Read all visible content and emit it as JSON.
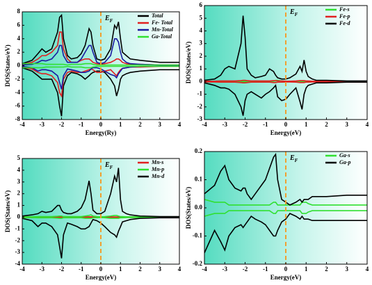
{
  "chart_data": [
    {
      "type": "line",
      "x_label": "Energy(Ry)",
      "y_label": "DOS(States/eV)",
      "fermi_label": {
        "main": "E",
        "sub": "F"
      },
      "fermi_level": 0,
      "fermi_color": "#f0a030",
      "legend": "upper right",
      "xlim": [
        -4,
        4
      ],
      "xticks": [
        -4,
        -3,
        -2,
        -1,
        0,
        1,
        2,
        3,
        4
      ],
      "ylim": [
        -8,
        8
      ],
      "yticks": [
        -8,
        -6,
        -4,
        -2,
        0,
        2,
        4,
        6,
        8
      ],
      "x": [
        -4,
        -3.5,
        -3.2,
        -3,
        -2.8,
        -2.5,
        -2.2,
        -2.1,
        -2,
        -1.9,
        -1.7,
        -1.5,
        -1.2,
        -1,
        -0.8,
        -0.6,
        -0.5,
        -0.4,
        -0.2,
        0,
        0.2,
        0.5,
        0.7,
        0.8,
        0.9,
        1,
        1.1,
        1.3,
        1.5,
        2,
        3,
        4
      ],
      "series": [
        {
          "name": "Total",
          "color": "#000000",
          "values": [
            0.3,
            0.8,
            1.8,
            2.5,
            2,
            2.5,
            5,
            7.2,
            7.5,
            4,
            1.5,
            1,
            1.2,
            1.8,
            3,
            5.5,
            5,
            3,
            1,
            0.8,
            1,
            2.5,
            6,
            5.5,
            6.5,
            4,
            2,
            1.5,
            1,
            0.8,
            0.5,
            0.5
          ],
          "down": [
            -0.3,
            -0.8,
            -1.5,
            -2,
            -2,
            -2,
            -4,
            -6,
            -7.5,
            -3,
            -1.5,
            -1,
            -1.2,
            -1.5,
            -2,
            -1.5,
            -1.2,
            -1,
            -0.8,
            -0.8,
            -1,
            -2,
            -3,
            -4.5,
            -3.5,
            -2,
            -1.5,
            -1.2,
            -1,
            -0.8,
            -0.6,
            -0.6
          ]
        },
        {
          "name": "Fe- Total",
          "color": "#e02020",
          "values": [
            0.2,
            0.5,
            1,
            1.5,
            1.5,
            2,
            3,
            5,
            5,
            2.5,
            1,
            0.5,
            0.5,
            0.8,
            1,
            1,
            0.8,
            0.5,
            0.3,
            0.2,
            0.3,
            0.5,
            0.8,
            1,
            1,
            0.8,
            0.5,
            0.3,
            0.2,
            0.2,
            0.1,
            0.1
          ],
          "down": [
            -0.2,
            -0.5,
            -1,
            -1.2,
            -1.2,
            -1.5,
            -2.5,
            -4,
            -4.5,
            -2,
            -1,
            -0.8,
            -1,
            -1,
            -0.8,
            -0.6,
            -0.5,
            -0.6,
            -1,
            -1,
            -0.8,
            -0.6,
            -1.2,
            -1.5,
            -1,
            -0.6,
            -0.4,
            -0.3,
            -0.2,
            -0.2,
            -0.1,
            -0.1
          ]
        },
        {
          "name": "Mn-Total",
          "color": "#1a1aa0",
          "values": [
            0.1,
            0.2,
            0.5,
            0.8,
            0.7,
            1,
            2,
            3,
            3,
            1.5,
            0.5,
            0.5,
            0.5,
            1,
            2,
            3,
            3,
            2,
            0.5,
            0.3,
            0.5,
            1.5,
            4,
            4,
            3.5,
            2,
            1,
            0.5,
            0.3,
            0.2,
            0.1,
            0.1
          ],
          "down": [
            -0.1,
            -0.3,
            -0.8,
            -0.6,
            -0.6,
            -0.8,
            -1.5,
            -2.5,
            -3.5,
            -1.5,
            -0.5,
            -0.6,
            -0.8,
            -1,
            -1,
            -0.8,
            -0.5,
            -0.3,
            -0.3,
            -0.5,
            -0.8,
            -1.3,
            -1.5,
            -1.8,
            -1.2,
            -0.8,
            -0.4,
            -0.3,
            -0.2,
            -0.1,
            -0.05,
            -0.05
          ]
        },
        {
          "name": "Ga-Total",
          "color": "#30e030",
          "values": [
            0.3,
            0.3,
            0.3,
            0.3,
            0.2,
            0.2,
            0.2,
            0.2,
            0.2,
            0.2,
            0.1,
            0.2,
            0.2,
            0.2,
            0.3,
            0.3,
            0.3,
            0.2,
            0.1,
            0.1,
            0.1,
            0.1,
            0.1,
            0.1,
            0.1,
            0.1,
            0.1,
            0.1,
            0.1,
            0.1,
            0.1,
            0.1
          ],
          "down": [
            -0.3,
            -0.3,
            -0.3,
            -0.3,
            -0.2,
            -0.2,
            -0.2,
            -0.2,
            -0.2,
            -0.2,
            -0.1,
            -0.2,
            -0.2,
            -0.2,
            -0.3,
            -0.3,
            -0.3,
            -0.2,
            -0.1,
            -0.1,
            -0.1,
            -0.1,
            -0.1,
            -0.1,
            -0.1,
            -0.1,
            -0.1,
            -0.1,
            -0.1,
            -0.1,
            -0.1,
            -0.1
          ]
        }
      ]
    },
    {
      "type": "line",
      "x_label": "Energy(eV)",
      "y_label": "DOS(States/eV)",
      "fermi_label": {
        "main": "E",
        "sub": "F"
      },
      "fermi_level": 0,
      "fermi_color": "#f0a030",
      "legend": "upper right",
      "xlim": [
        -4,
        4
      ],
      "xticks": [
        -4,
        -3,
        -2,
        -1,
        0,
        1,
        2,
        3,
        4
      ],
      "ylim": [
        -3,
        6
      ],
      "yticks": [
        -3,
        -2,
        -1,
        0,
        1,
        2,
        3,
        4,
        5,
        6
      ],
      "x": [
        -4,
        -3.5,
        -3.2,
        -3,
        -2.8,
        -2.5,
        -2.2,
        -2.1,
        -2,
        -1.9,
        -1.7,
        -1.5,
        -1.2,
        -1,
        -0.8,
        -0.6,
        -0.5,
        -0.4,
        -0.2,
        0,
        0.2,
        0.5,
        0.7,
        0.8,
        0.9,
        1,
        1.1,
        1.3,
        1.5,
        2,
        3,
        4
      ],
      "series": [
        {
          "name": "Fe-s",
          "color": "#30e030",
          "values": [
            0.02,
            0.02,
            0.03,
            0.03,
            0.03,
            0.03,
            0.03,
            0.03,
            0.03,
            0.03,
            0.02,
            0.02,
            0.02,
            0.02,
            0.03,
            0.05,
            0.1,
            0.1,
            0.05,
            0.02,
            0.02,
            0.02,
            0.02,
            0.02,
            0.02,
            0.02,
            0.02,
            0.02,
            0.02,
            0.02,
            0.02,
            0.02
          ],
          "down": [
            -0.02,
            -0.02,
            -0.03,
            -0.03,
            -0.03,
            -0.03,
            -0.03,
            -0.03,
            -0.03,
            -0.03,
            -0.02,
            -0.02,
            -0.02,
            -0.02,
            -0.03,
            -0.05,
            -0.05,
            -0.05,
            -0.05,
            -0.02,
            -0.02,
            -0.02,
            -0.02,
            -0.02,
            -0.02,
            -0.02,
            -0.02,
            -0.02,
            -0.02,
            -0.02,
            -0.02,
            -0.02
          ]
        },
        {
          "name": "Fe-p",
          "color": "#e02020",
          "values": [
            0.03,
            0.03,
            0.05,
            0.05,
            0.05,
            0.05,
            0.08,
            0.1,
            0.1,
            0.08,
            0.05,
            0.05,
            0.05,
            0.05,
            0.05,
            0.08,
            0.08,
            0.05,
            0.05,
            0.03,
            0.03,
            0.05,
            0.08,
            0.08,
            0.08,
            0.05,
            0.05,
            0.03,
            0.03,
            0.03,
            0.03,
            0.03
          ],
          "down": [
            -0.03,
            -0.03,
            -0.05,
            -0.05,
            -0.05,
            -0.05,
            -0.08,
            -0.1,
            -0.1,
            -0.08,
            -0.05,
            -0.05,
            -0.05,
            -0.05,
            -0.05,
            -0.08,
            -0.08,
            -0.05,
            -0.05,
            -0.03,
            -0.03,
            -0.05,
            -0.08,
            -0.08,
            -0.08,
            -0.05,
            -0.05,
            -0.03,
            -0.03,
            -0.03,
            -0.03,
            -0.03
          ]
        },
        {
          "name": "Fe-d",
          "color": "#000000",
          "values": [
            0.1,
            0.2,
            0.5,
            1,
            1.2,
            1,
            3,
            5.2,
            3.5,
            1,
            0.5,
            0.3,
            0.4,
            0.5,
            1,
            0.8,
            0.5,
            0.3,
            0.2,
            0.2,
            0.3,
            0.6,
            1.2,
            0.8,
            1.7,
            0.8,
            0.4,
            0.2,
            0.1,
            0.1,
            0.05,
            0.05
          ],
          "down": [
            -0.1,
            -0.3,
            -0.5,
            -0.5,
            -0.6,
            -1,
            -2,
            -2.7,
            -1.5,
            -1,
            -0.8,
            -1,
            -1.3,
            -1,
            -0.8,
            -0.5,
            -0.3,
            -1.2,
            -1.5,
            -1.4,
            -1,
            -0.5,
            -1.6,
            -2.2,
            -1,
            -0.5,
            -0.3,
            -0.2,
            -0.1,
            -0.1,
            -0.05,
            -0.05
          ]
        }
      ]
    },
    {
      "type": "line",
      "x_label": "Energy(eV)",
      "y_label": "DOS(States/eV)",
      "fermi_label": {
        "main": "E",
        "sub": "F"
      },
      "fermi_level": 0,
      "fermi_color": "#f0a030",
      "legend": "upper right",
      "xlim": [
        -4,
        4
      ],
      "xticks": [
        -4,
        -3,
        -2,
        -1,
        0,
        1,
        2,
        3,
        4
      ],
      "ylim": [
        -4,
        5
      ],
      "yticks": [
        -4,
        -3,
        -2,
        -1,
        0,
        1,
        2,
        3,
        4,
        5
      ],
      "x": [
        -4,
        -3.5,
        -3.2,
        -3,
        -2.8,
        -2.5,
        -2.2,
        -2.1,
        -2,
        -1.9,
        -1.7,
        -1.5,
        -1.2,
        -1,
        -0.8,
        -0.6,
        -0.5,
        -0.4,
        -0.2,
        0,
        0.2,
        0.5,
        0.7,
        0.8,
        0.9,
        1,
        1.1,
        1.3,
        1.5,
        2,
        3,
        4
      ],
      "series": [
        {
          "name": "Mn-s",
          "color": "#e02020",
          "values": [
            0.02,
            0.02,
            0.02,
            0.02,
            0.02,
            0.02,
            0.03,
            0.03,
            0.03,
            0.02,
            0.02,
            0.02,
            0.02,
            0.02,
            0.02,
            0.03,
            0.03,
            0.02,
            0.02,
            0.02,
            0.02,
            0.02,
            0.02,
            0.02,
            0.02,
            0.02,
            0.02,
            0.02,
            0.02,
            0.02,
            0.02,
            0.02
          ],
          "down": [
            -0.02,
            -0.02,
            -0.02,
            -0.02,
            -0.02,
            -0.02,
            -0.03,
            -0.03,
            -0.03,
            -0.02,
            -0.02,
            -0.02,
            -0.02,
            -0.02,
            -0.02,
            -0.03,
            -0.03,
            -0.02,
            -0.02,
            -0.02,
            -0.02,
            -0.02,
            -0.02,
            -0.02,
            -0.02,
            -0.02,
            -0.02,
            -0.02,
            -0.02,
            -0.02,
            -0.02,
            -0.02
          ]
        },
        {
          "name": "Mn-p",
          "color": "#30e030",
          "values": [
            0.03,
            0.03,
            0.05,
            0.05,
            0.05,
            0.05,
            0.08,
            0.1,
            0.1,
            0.05,
            0.05,
            0.05,
            0.05,
            0.05,
            0.1,
            0.15,
            0.2,
            0.1,
            0.05,
            0.03,
            0.05,
            0.1,
            0.15,
            0.15,
            0.1,
            0.05,
            0.05,
            0.03,
            0.03,
            0.03,
            0.03,
            0.03
          ],
          "down": [
            -0.03,
            -0.03,
            -0.05,
            -0.05,
            -0.05,
            -0.05,
            -0.08,
            -0.1,
            -0.1,
            -0.05,
            -0.05,
            -0.05,
            -0.05,
            -0.05,
            -0.1,
            -0.1,
            -0.1,
            -0.05,
            -0.05,
            -0.03,
            -0.05,
            -0.1,
            -0.1,
            -0.1,
            -0.1,
            -0.05,
            -0.05,
            -0.03,
            -0.03,
            -0.03,
            -0.03,
            -0.03
          ]
        },
        {
          "name": "Mn-d",
          "color": "#000000",
          "values": [
            0.1,
            0.2,
            0.3,
            0.5,
            0.4,
            0.5,
            1,
            1,
            0.6,
            0.4,
            0.3,
            0.3,
            0.5,
            0.8,
            1.5,
            3.1,
            2,
            0.6,
            0.3,
            0.3,
            0.5,
            2,
            3.5,
            3,
            4.2,
            1.5,
            0.5,
            0.3,
            0.2,
            0.1,
            0.05,
            0.05
          ],
          "down": [
            -0.1,
            -0.3,
            -0.8,
            -0.5,
            -0.5,
            -0.8,
            -1.5,
            -2.5,
            -3.5,
            -1.5,
            -0.5,
            -0.6,
            -0.8,
            -1,
            -1,
            -0.8,
            -0.5,
            -0.2,
            -0.3,
            -0.5,
            -0.8,
            -1.3,
            -1.5,
            -1.7,
            -1.2,
            -0.8,
            -0.4,
            -0.3,
            -0.2,
            -0.1,
            -0.05,
            -0.05
          ]
        }
      ]
    },
    {
      "type": "line",
      "x_label": "Energy(eV)",
      "y_label": "DOS(States/eV)",
      "fermi_label": {
        "main": "E",
        "sub": "F"
      },
      "fermi_level": 0,
      "fermi_color": "#f0a030",
      "legend": "upper right",
      "xlim": [
        -4,
        4
      ],
      "xticks": [
        -4,
        -3,
        -2,
        -1,
        0,
        1,
        2,
        3,
        4
      ],
      "ylim": [
        -0.2,
        0.2
      ],
      "yticks": [
        -0.2,
        -0.1,
        {
          "value": 0,
          "label": "0.0"
        },
        0.1,
        0.2
      ],
      "x": [
        -4,
        -3.5,
        -3.2,
        -3,
        -2.8,
        -2.5,
        -2.2,
        -2.1,
        -2,
        -1.9,
        -1.7,
        -1.5,
        -1.2,
        -1,
        -0.8,
        -0.6,
        -0.5,
        -0.4,
        -0.2,
        0,
        0.2,
        0.5,
        0.7,
        0.8,
        0.9,
        1,
        1.1,
        1.3,
        1.5,
        2,
        3,
        4
      ],
      "series": [
        {
          "name": "Ga-s",
          "color": "#30e030",
          "values": [
            0.03,
            0.02,
            0.02,
            0.02,
            0.01,
            0.01,
            0.01,
            0.01,
            0.01,
            0.01,
            0.01,
            0.01,
            0.01,
            0.01,
            0.01,
            0.02,
            0.02,
            0.01,
            0.01,
            0.01,
            0.01,
            0.01,
            0.01,
            0.02,
            0.02,
            0.02,
            0.015,
            0.01,
            0.01,
            0.01,
            0.01,
            0.01
          ],
          "down": [
            -0.03,
            -0.02,
            -0.02,
            -0.02,
            -0.01,
            -0.01,
            -0.01,
            -0.01,
            -0.01,
            -0.01,
            -0.01,
            -0.01,
            -0.01,
            -0.01,
            -0.01,
            -0.02,
            -0.02,
            -0.01,
            -0.01,
            -0.01,
            -0.01,
            -0.01,
            -0.01,
            -0.02,
            -0.02,
            -0.02,
            -0.015,
            -0.01,
            -0.01,
            -0.01,
            -0.01,
            -0.01
          ]
        },
        {
          "name": "Ga-p",
          "color": "#000000",
          "values": [
            0.05,
            0.08,
            0.13,
            0.15,
            0.1,
            0.07,
            0.06,
            0.07,
            0.07,
            0.05,
            0.03,
            0.05,
            0.08,
            0.1,
            0.14,
            0.18,
            0.19,
            0.1,
            0.03,
            0.02,
            0.01,
            0.02,
            0.03,
            0.02,
            0.03,
            0.03,
            0.03,
            0.04,
            0.04,
            0.04,
            0.045,
            0.045
          ],
          "down": [
            -0.16,
            -0.08,
            -0.12,
            -0.15,
            -0.1,
            -0.07,
            -0.06,
            -0.07,
            -0.06,
            -0.05,
            -0.03,
            -0.04,
            -0.05,
            -0.06,
            -0.08,
            -0.1,
            -0.1,
            -0.08,
            -0.05,
            -0.04,
            -0.02,
            -0.03,
            -0.04,
            -0.03,
            -0.04,
            -0.04,
            -0.04,
            -0.045,
            -0.045,
            -0.045,
            -0.045,
            -0.045
          ]
        }
      ]
    }
  ]
}
